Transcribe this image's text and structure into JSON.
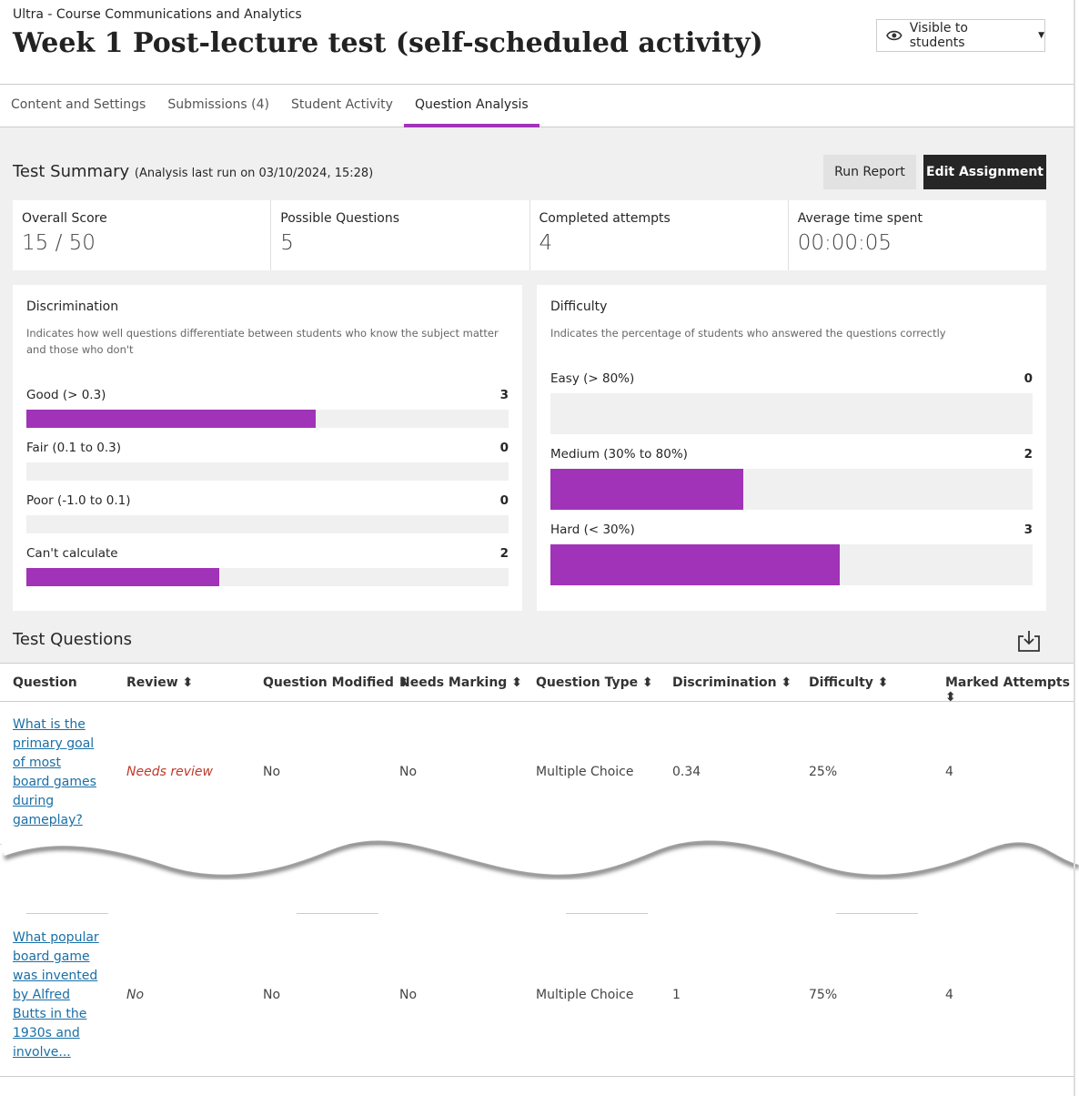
{
  "breadcrumb": "Ultra - Course Communications and Analytics",
  "title": "Week 1 Post-lecture test (self-scheduled activity)",
  "visibility": {
    "label": "Visible to students",
    "icon": "eye-icon"
  },
  "tabs": [
    {
      "label": "Content and Settings"
    },
    {
      "label": "Submissions (4)"
    },
    {
      "label": "Student Activity"
    },
    {
      "label": "Question Analysis",
      "active": true
    }
  ],
  "summary": {
    "title": "Test Summary",
    "subtitle": "(Analysis last run on 03/10/2024, 15:28)",
    "run_report": "Run Report",
    "edit_assignment": "Edit Assignment",
    "cards": [
      {
        "label": "Overall Score",
        "value": "15 / 50"
      },
      {
        "label": "Possible Questions",
        "value": "5"
      },
      {
        "label": "Completed attempts",
        "value": "4"
      },
      {
        "label": "Average time spent",
        "value": "00:00:05"
      }
    ]
  },
  "accent": "#a033b8",
  "discrimination": {
    "title": "Discrimination",
    "desc": "Indicates how well questions differentiate between students who know the subject matter and those who don't",
    "rows": [
      {
        "label": "Good (> 0.3)",
        "count": "3",
        "fraction": 0.6
      },
      {
        "label": "Fair (0.1 to 0.3)",
        "count": "0",
        "fraction": 0
      },
      {
        "label": "Poor (-1.0 to 0.1)",
        "count": "0",
        "fraction": 0
      },
      {
        "label": "Can't calculate",
        "count": "2",
        "fraction": 0.4
      }
    ]
  },
  "difficulty": {
    "title": "Difficulty",
    "desc": "Indicates the percentage of students who answered the questions correctly",
    "rows": [
      {
        "label": "Easy (> 80%)",
        "count": "0",
        "fraction": 0
      },
      {
        "label": "Medium (30% to 80%)",
        "count": "2",
        "fraction": 0.4
      },
      {
        "label": "Hard (< 30%)",
        "count": "3",
        "fraction": 0.6
      }
    ]
  },
  "questions": {
    "title": "Test Questions",
    "download_icon": "download-icon",
    "columns": [
      "Question",
      "Review ⬍",
      "Question Modified ⬍",
      "Needs Marking ⬍",
      "Question Type ⬍",
      "Discrimination ⬍",
      "Difficulty ⬍",
      "Marked Attempts ⬍"
    ],
    "rows": [
      {
        "question": "What is the primary goal of most board games during gameplay?",
        "review": "Needs review",
        "modified": "No",
        "needs_marking": "No",
        "type": "Multiple Choice",
        "discrimination": "0.34",
        "difficulty": "25%",
        "attempts": "4"
      },
      {
        "question": "What popular board game was invented by Alfred Butts in the 1930s and involve...",
        "review": "No",
        "modified": "No",
        "needs_marking": "No",
        "type": "Multiple Choice",
        "discrimination": "1",
        "difficulty": "75%",
        "attempts": "4"
      }
    ]
  }
}
